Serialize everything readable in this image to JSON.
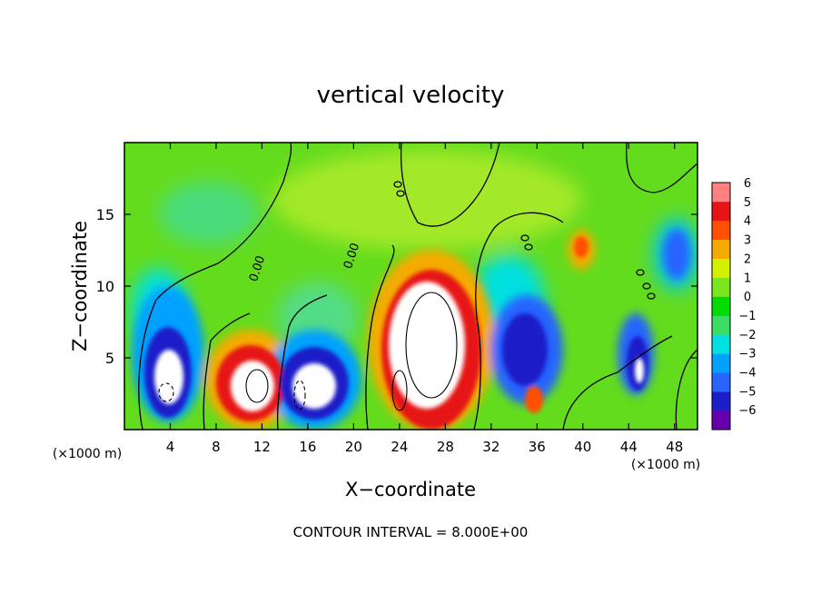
{
  "chart_data": {
    "type": "heatmap",
    "title": "vertical velocity",
    "xlabel": "X−coordinate",
    "ylabel": "Z−coordinate",
    "x_unit": "(×1000 m)",
    "y_unit": "(×1000 m)",
    "xlim": [
      0,
      50
    ],
    "ylim": [
      0,
      20
    ],
    "x_ticks": [
      4,
      8,
      12,
      16,
      20,
      24,
      28,
      32,
      36,
      40,
      44,
      48
    ],
    "y_ticks": [
      5,
      10,
      15
    ],
    "colorbar": {
      "min": -6,
      "max": 6,
      "ticks": [
        "6",
        "5",
        "4",
        "3",
        "2",
        "1",
        "0",
        "−1",
        "−2",
        "−3",
        "−4",
        "−5",
        "−6"
      ],
      "colors": [
        "#6600aa",
        "#1e1ec8",
        "#2864ff",
        "#00a0ff",
        "#00e0e0",
        "#3cdc64",
        "#00dc00",
        "#7ae61e",
        "#d2f000",
        "#f5aa00",
        "#ff5000",
        "#e61414",
        "#ff8080"
      ]
    },
    "contour_labels": [
      "0.00",
      "0.00"
    ],
    "features": [
      {
        "x": 5,
        "z": 3.5,
        "value": -8,
        "sign": "negative"
      },
      {
        "x": 11.5,
        "z": 3.2,
        "value": 8,
        "sign": "positive"
      },
      {
        "x": 17,
        "z": 3.2,
        "value": -8,
        "sign": "negative"
      },
      {
        "x": 26.5,
        "z": 5.5,
        "value": 8,
        "sign": "positive"
      },
      {
        "x": 34.5,
        "z": 5,
        "value": -5,
        "sign": "negative"
      },
      {
        "x": 40,
        "z": 12.5,
        "value": 3,
        "sign": "positive"
      },
      {
        "x": 45,
        "z": 4,
        "value": -6,
        "sign": "negative"
      },
      {
        "x": 48,
        "z": 12.5,
        "value": -3,
        "sign": "negative"
      }
    ],
    "footer": "CONTOUR INTERVAL = 8.000E+00"
  }
}
